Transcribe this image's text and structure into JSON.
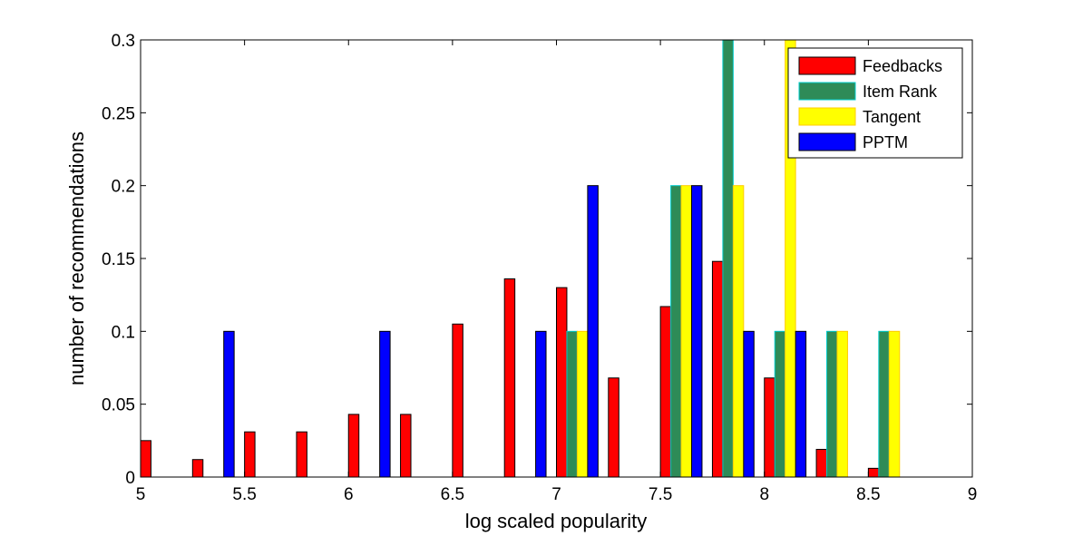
{
  "chart_data": {
    "type": "bar",
    "title": "",
    "xlabel": "log scaled popularity",
    "ylabel": "number of recommendations",
    "xlim": [
      5,
      9
    ],
    "ylim": [
      0,
      0.3
    ],
    "xticks": [
      "5",
      "5.5",
      "6",
      "6.5",
      "7",
      "7.5",
      "8",
      "8.5",
      "9"
    ],
    "yticks": [
      "0",
      "0.05",
      "0.1",
      "0.15",
      "0.2",
      "0.25",
      "0.3"
    ],
    "grid": false,
    "legend_position": "top-right",
    "bin_centers": [
      5.1,
      5.35,
      5.6,
      5.85,
      6.1,
      6.35,
      6.6,
      6.85,
      7.1,
      7.35,
      7.6,
      7.85,
      8.1,
      8.35,
      8.6,
      8.85
    ],
    "series": [
      {
        "name": "Feedbacks",
        "color": "#ff0000",
        "edge": "#000000",
        "values": [
          0.025,
          0.012,
          0.031,
          0.031,
          0.043,
          0.043,
          0.105,
          0.136,
          0.13,
          0.068,
          0.117,
          0.148,
          0.068,
          0.019,
          0.006,
          0
        ]
      },
      {
        "name": "Item Rank",
        "color": "#2e8b57",
        "edge": "#00cccc",
        "values": [
          0,
          0,
          0,
          0,
          0,
          0,
          0,
          0,
          0.1,
          0,
          0.2,
          0.3,
          0.1,
          0.1,
          0.1,
          0
        ]
      },
      {
        "name": "Tangent",
        "color": "#ffff00",
        "edge": "#ffcc00",
        "values": [
          0,
          0,
          0,
          0,
          0,
          0,
          0,
          0,
          0.1,
          0,
          0.2,
          0.2,
          0.3,
          0.1,
          0.1,
          0
        ]
      },
      {
        "name": "PPTM",
        "color": "#0000ff",
        "edge": "#000000",
        "values": [
          0,
          0.1,
          0,
          0,
          0.1,
          0,
          0,
          0.1,
          0.2,
          0,
          0.2,
          0.1,
          0.1,
          0,
          0,
          0
        ]
      }
    ]
  }
}
